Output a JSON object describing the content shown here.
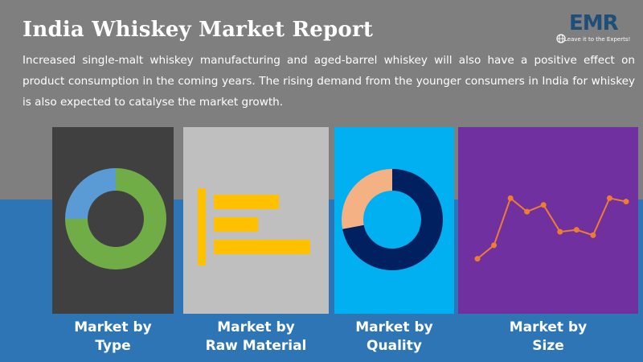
{
  "header": {
    "title": "India Whiskey Market Report",
    "description": "Increased single-malt whiskey manufacturing and aged-barrel whiskey will also have a positive effect on product consumption in the coming years. The rising demand from the younger consumers in India for whiskey is also expected to catalyse the market growth."
  },
  "logo": {
    "text": "EMR",
    "tagline": "Leave it to the Experts!",
    "icon": "globe-icon"
  },
  "colors": {
    "top_background": "#7f7f7f",
    "bottom_background": "#2e75b6",
    "panel_type": "#404040",
    "panel_raw_material": "#bfbfbf",
    "panel_quality": "#00b0f0",
    "panel_size": "#7030a0",
    "bars": "#ffc000",
    "line": "#ed7d31"
  },
  "segments": [
    {
      "line1": "Market by",
      "line2": "Type"
    },
    {
      "line1": "Market by",
      "line2": "Raw Material"
    },
    {
      "line1": "Market by",
      "line2": "Quality"
    },
    {
      "line1": "Market by",
      "line2": "Size"
    }
  ],
  "chart_data": [
    {
      "type": "pie",
      "style": "donut",
      "values": [
        75,
        25
      ],
      "colors": [
        "#70ad47",
        "#5b9bd5"
      ]
    },
    {
      "type": "bar",
      "orientation": "horizontal",
      "values": [
        100,
        68,
        148
      ],
      "colors": [
        "#ffc000"
      ]
    },
    {
      "type": "pie",
      "style": "donut",
      "values": [
        72,
        28
      ],
      "colors": [
        "#002060",
        "#f4b183"
      ]
    },
    {
      "type": "line",
      "x": [
        1,
        2,
        3,
        4,
        5,
        6,
        7,
        8,
        9,
        10
      ],
      "values": [
        1,
        3,
        10,
        8,
        9,
        5,
        5.3,
        4.5,
        10,
        9.5
      ],
      "ylim": [
        0,
        11
      ],
      "colors": [
        "#ed7d31"
      ]
    }
  ]
}
